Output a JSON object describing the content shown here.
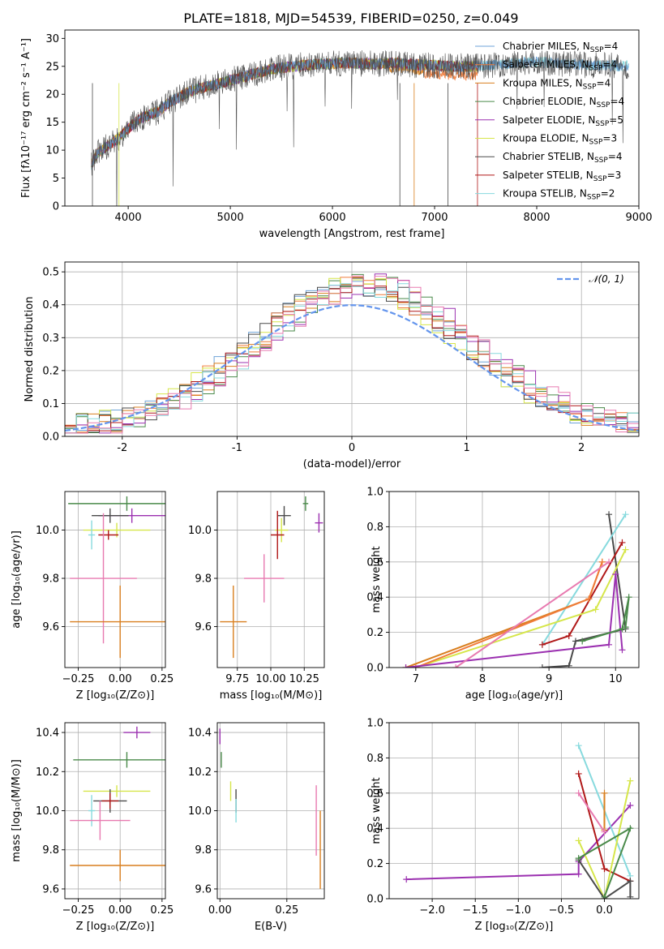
{
  "colors": {
    "c1": "#6fa3d8",
    "c2": "#f07c3a",
    "c3": "#d97f1f",
    "c4": "#4a8a4a",
    "c5": "#9b30b0",
    "c6": "#d6e64a",
    "c7": "#4a4a4a",
    "c8": "#b01818",
    "c9": "#87dade",
    "pink": "#e87ab0",
    "gauss": "#6495ed"
  },
  "title": "PLATE=1818, MJD=54539, FIBERID=0250, z=0.049",
  "chart_data": [
    {
      "id": "spectrum",
      "type": "line",
      "xlabel": "wavelength [Angstrom, rest frame]",
      "ylabel": "Flux [fλ10⁻¹⁷ erg cm⁻² s⁻¹ A⁻¹]",
      "xlim": [
        3380,
        9000
      ],
      "ylim": [
        0,
        31.5
      ],
      "xticks": [
        4000,
        5000,
        6000,
        7000,
        8000,
        9000
      ],
      "yticks": [
        0,
        5,
        10,
        15,
        20,
        25,
        30
      ],
      "legend_position": "top-right",
      "legend": [
        {
          "label": "Chabrier MILES, N",
          "sub": "SSP",
          "suffix": "=4",
          "color": "c1"
        },
        {
          "label": "Salpeter MILES, N",
          "sub": "SSP",
          "suffix": "=4",
          "color": "c2"
        },
        {
          "label": "Kroupa MILES, N",
          "sub": "SSP",
          "suffix": "=4",
          "color": "c3"
        },
        {
          "label": "Chabrier ELODIE, N",
          "sub": "SSP",
          "suffix": "=4",
          "color": "c4"
        },
        {
          "label": "Salpeter ELODIE, N",
          "sub": "SSP",
          "suffix": "=5",
          "color": "c5"
        },
        {
          "label": "Kroupa ELODIE, N",
          "sub": "SSP",
          "suffix": "=3",
          "color": "c6"
        },
        {
          "label": "Chabrier STELIB, N",
          "sub": "SSP",
          "suffix": "=4",
          "color": "c7"
        },
        {
          "label": "Salpeter STELIB, N",
          "sub": "SSP",
          "suffix": "=3",
          "color": "c8"
        },
        {
          "label": "Kroupa STELIB, N",
          "sub": "SSP",
          "suffix": "=2",
          "color": "c9"
        }
      ],
      "continuum": [
        [
          3640,
          7.5
        ],
        [
          3700,
          9.5
        ],
        [
          3900,
          12
        ],
        [
          4000,
          13.8
        ],
        [
          4100,
          15.5
        ],
        [
          4300,
          17
        ],
        [
          4400,
          18.5
        ],
        [
          4600,
          20.5
        ],
        [
          4800,
          21.5
        ],
        [
          5000,
          22.5
        ],
        [
          5200,
          23.5
        ],
        [
          5400,
          24.5
        ],
        [
          5600,
          25
        ],
        [
          5800,
          25.3
        ],
        [
          6000,
          25.5
        ],
        [
          6200,
          25.6
        ],
        [
          6400,
          25.4
        ],
        [
          6600,
          25.6
        ],
        [
          6800,
          25.3
        ],
        [
          7000,
          25.2
        ],
        [
          7200,
          25
        ],
        [
          7400,
          25
        ],
        [
          7600,
          25.3
        ],
        [
          7800,
          25.6
        ],
        [
          8000,
          25.8
        ],
        [
          8200,
          25.6
        ],
        [
          8400,
          25.3
        ],
        [
          8600,
          25.2
        ],
        [
          8800,
          25.1
        ],
        [
          8900,
          25
        ]
      ]
    },
    {
      "id": "residuals",
      "type": "histogram",
      "xlabel": "(data-model)/error",
      "ylabel": "Normed distribution",
      "xlim": [
        -2.5,
        2.5
      ],
      "ylim": [
        0,
        0.53
      ],
      "xticks": [
        -2,
        -1,
        0,
        1,
        2
      ],
      "yticks": [
        0.0,
        0.1,
        0.2,
        0.3,
        0.4,
        0.5
      ],
      "legend": "𝒩(0, 1)",
      "legend_position": "top-right",
      "bin_width": 0.1,
      "base": [
        0.03,
        0.035,
        0.04,
        0.045,
        0.05,
        0.06,
        0.07,
        0.08,
        0.09,
        0.1,
        0.12,
        0.13,
        0.15,
        0.17,
        0.19,
        0.21,
        0.23,
        0.25,
        0.27,
        0.29,
        0.31,
        0.33,
        0.35,
        0.37,
        0.39,
        0.41,
        0.42,
        0.43,
        0.44,
        0.45,
        0.44,
        0.43,
        0.42,
        0.41,
        0.39,
        0.37,
        0.35,
        0.33,
        0.31,
        0.29,
        0.27,
        0.25,
        0.23,
        0.21,
        0.19,
        0.17,
        0.15,
        0.13,
        0.11,
        0.09
      ],
      "gaussian": {
        "mean": 0,
        "sigma": 1
      }
    },
    {
      "id": "age_vs_Z",
      "type": "errorbar",
      "xlabel": "Z [log₁₀(Z/Z⊙)]",
      "ylabel": "age  [log₁₀(age/yr)]",
      "xlim": [
        -0.33,
        0.27
      ],
      "ylim": [
        9.43,
        10.16
      ],
      "xticks": [
        -0.25,
        0.0,
        0.25
      ],
      "xticklabels": [
        "−0.25",
        "0.00",
        "0.25"
      ],
      "yticks": [
        9.6,
        9.8,
        10.0
      ],
      "points": [
        {
          "x": 0.04,
          "y": 10.11,
          "xerr": 0.35,
          "yerr": 0.03,
          "color": "c4"
        },
        {
          "x": 0.07,
          "y": 10.06,
          "xerr": 0.2,
          "yerr": 0.03,
          "color": "c5"
        },
        {
          "x": -0.06,
          "y": 10.06,
          "xerr": 0.11,
          "yerr": 0.03,
          "color": "c7"
        },
        {
          "x": -0.02,
          "y": 10.0,
          "xerr": 0.2,
          "yerr": 0.03,
          "color": "c6"
        },
        {
          "x": -0.07,
          "y": 9.98,
          "xerr": 0.06,
          "yerr": 0.02,
          "color": "c8"
        },
        {
          "x": -0.17,
          "y": 9.98,
          "xerr": 0.02,
          "yerr": 0.06,
          "color": "c9"
        },
        {
          "x": -0.1,
          "y": 9.8,
          "xerr": 0.2,
          "yerr": 0.27,
          "color": "pink"
        },
        {
          "x": 0.0,
          "y": 9.62,
          "xerr": 0.3,
          "yerr": 0.15,
          "color": "c3"
        }
      ]
    },
    {
      "id": "age_vs_mass",
      "type": "errorbar",
      "xlabel": "mass [log₁₀(M/M⊙)]",
      "xlim": [
        9.6,
        10.4
      ],
      "ylim": [
        9.43,
        10.16
      ],
      "xticks": [
        9.75,
        10.0,
        10.25
      ],
      "xticklabels": [
        "9.75",
        "10.00",
        "10.25"
      ],
      "yticks": [
        9.6,
        9.8,
        10.0
      ],
      "points": [
        {
          "x": 10.26,
          "y": 10.11,
          "xerr": 0.02,
          "yerr": 0.03,
          "color": "c4"
        },
        {
          "x": 10.36,
          "y": 10.03,
          "xerr": 0.03,
          "yerr": 0.04,
          "color": "c5"
        },
        {
          "x": 10.1,
          "y": 10.06,
          "xerr": 0.05,
          "yerr": 0.04,
          "color": "c7"
        },
        {
          "x": 10.08,
          "y": 10.0,
          "xerr": 0.05,
          "yerr": 0.05,
          "color": "c6"
        },
        {
          "x": 10.05,
          "y": 9.98,
          "xerr": 0.05,
          "yerr": 0.1,
          "color": "c8"
        },
        {
          "x": 9.95,
          "y": 9.8,
          "xerr": 0.15,
          "yerr": 0.1,
          "color": "pink"
        },
        {
          "x": 9.72,
          "y": 9.62,
          "xerr": 0.1,
          "yerr": 0.15,
          "color": "c3"
        }
      ]
    },
    {
      "id": "weight_vs_age",
      "type": "line",
      "xlabel": "age  [log₁₀(age/yr)]",
      "ylabel": "mass weight",
      "xlim": [
        6.6,
        10.35
      ],
      "ylim": [
        0,
        1
      ],
      "xticks": [
        7,
        8,
        9,
        10
      ],
      "yticks": [
        0.0,
        0.2,
        0.4,
        0.6,
        0.8,
        1.0
      ],
      "series": [
        {
          "color": "c7",
          "points": [
            [
              8.9,
              0.0
            ],
            [
              9.3,
              0.01
            ],
            [
              9.4,
              0.15
            ],
            [
              10.15,
              0.22
            ],
            [
              9.9,
              0.87
            ]
          ]
        },
        {
          "color": "c9",
          "points": [
            [
              8.9,
              0.13
            ],
            [
              10.15,
              0.87
            ]
          ]
        },
        {
          "color": "c8",
          "points": [
            [
              8.9,
              0.13
            ],
            [
              9.3,
              0.18
            ],
            [
              10.1,
              0.71
            ]
          ]
        },
        {
          "color": "c6",
          "points": [
            [
              7.0,
              0.0
            ],
            [
              9.7,
              0.33
            ],
            [
              10.15,
              0.67
            ]
          ]
        },
        {
          "color": "c3",
          "points": [
            [
              6.85,
              0.0
            ],
            [
              9.6,
              0.39
            ],
            [
              9.8,
              0.6
            ]
          ]
        },
        {
          "color": "c2",
          "points": [
            [
              7.0,
              0.0
            ],
            [
              9.6,
              0.39
            ],
            [
              9.8,
              0.6
            ]
          ]
        },
        {
          "color": "c5",
          "points": [
            [
              6.85,
              0.0
            ],
            [
              9.9,
              0.13
            ],
            [
              10.0,
              0.53
            ],
            [
              10.1,
              0.1
            ]
          ]
        },
        {
          "color": "c4",
          "points": [
            [
              9.5,
              0.15
            ],
            [
              10.1,
              0.22
            ],
            [
              10.2,
              0.4
            ],
            [
              10.15,
              0.23
            ]
          ]
        },
        {
          "color": "pink",
          "points": [
            [
              7.6,
              0.0
            ],
            [
              9.9,
              0.6
            ]
          ]
        }
      ]
    },
    {
      "id": "mass_vs_Z",
      "type": "errorbar",
      "xlabel": "Z [log₁₀(Z/Z⊙)]",
      "ylabel": "mass [log₁₀(M/M⊙)]",
      "xlim": [
        -0.33,
        0.27
      ],
      "ylim": [
        9.55,
        10.45
      ],
      "xticks": [
        -0.25,
        0.0,
        0.25
      ],
      "xticklabels": [
        "−0.25",
        "0.00",
        "0.25"
      ],
      "yticks": [
        9.6,
        9.8,
        10.0,
        10.2,
        10.4
      ],
      "points": [
        {
          "x": 0.1,
          "y": 10.4,
          "xerr": 0.08,
          "yerr": 0.03,
          "color": "c5"
        },
        {
          "x": 0.04,
          "y": 10.26,
          "xerr": 0.32,
          "yerr": 0.04,
          "color": "c4"
        },
        {
          "x": -0.02,
          "y": 10.1,
          "xerr": 0.2,
          "yerr": 0.03,
          "color": "c6"
        },
        {
          "x": -0.06,
          "y": 10.05,
          "xerr": 0.1,
          "yerr": 0.06,
          "color": "c7"
        },
        {
          "x": -0.06,
          "y": 10.05,
          "xerr": 0.05,
          "yerr": 0.04,
          "color": "c8"
        },
        {
          "x": -0.17,
          "y": 10.0,
          "xerr": 0.02,
          "yerr": 0.08,
          "color": "c9"
        },
        {
          "x": -0.12,
          "y": 9.95,
          "xerr": 0.18,
          "yerr": 0.1,
          "color": "pink"
        },
        {
          "x": 0.0,
          "y": 9.72,
          "xerr": 0.3,
          "yerr": 0.08,
          "color": "c3"
        }
      ]
    },
    {
      "id": "mass_vs_EBV",
      "type": "errorbar",
      "xlabel": "E(B-V)",
      "xlim": [
        -0.01,
        0.39
      ],
      "ylim": [
        9.55,
        10.45
      ],
      "xticks": [
        0.0,
        0.25
      ],
      "xticklabels": [
        "0.00",
        "0.25"
      ],
      "yticks": [
        9.6,
        9.8,
        10.0,
        10.2,
        10.4
      ],
      "points": [
        {
          "x": 0.0,
          "y": 10.38,
          "xerr": 0,
          "yerr": 0.04,
          "color": "c5"
        },
        {
          "x": 0.005,
          "y": 10.26,
          "xerr": 0,
          "yerr": 0.04,
          "color": "c4"
        },
        {
          "x": 0.04,
          "y": 10.1,
          "xerr": 0,
          "yerr": 0.05,
          "color": "c6"
        },
        {
          "x": 0.06,
          "y": 10.05,
          "xerr": 0,
          "yerr": 0.06,
          "color": "c7"
        },
        {
          "x": 0.06,
          "y": 10.0,
          "xerr": 0,
          "yerr": 0.06,
          "color": "c9"
        },
        {
          "x": 0.36,
          "y": 9.95,
          "xerr": 0,
          "yerr": 0.18,
          "color": "pink"
        },
        {
          "x": 0.375,
          "y": 9.8,
          "xerr": 0,
          "yerr": 0.2,
          "color": "c3"
        }
      ]
    },
    {
      "id": "weight_vs_Z",
      "type": "line",
      "xlabel": "Z [log₁₀(Z/Z⊙)]",
      "ylabel": "mass weight",
      "xlim": [
        -2.5,
        0.4
      ],
      "ylim": [
        0,
        1
      ],
      "xticks": [
        -2.0,
        -1.5,
        -1.0,
        -0.5,
        0.0
      ],
      "xticklabels": [
        "−2.0",
        "−1.5",
        "−1.0",
        "−0.5",
        "0.0"
      ],
      "yticks": [
        0.0,
        0.2,
        0.4,
        0.6,
        0.8,
        1.0
      ],
      "series": [
        {
          "color": "c5",
          "points": [
            [
              -2.3,
              0.11
            ],
            [
              -0.3,
              0.14
            ],
            [
              -0.3,
              0.21
            ],
            [
              0.3,
              0.53
            ]
          ]
        },
        {
          "color": "c9",
          "points": [
            [
              -0.3,
              0.87
            ],
            [
              0.3,
              0.13
            ]
          ]
        },
        {
          "color": "c8",
          "points": [
            [
              -0.3,
              0.71
            ],
            [
              0.0,
              0.17
            ],
            [
              0.3,
              0.1
            ]
          ]
        },
        {
          "color": "c6",
          "points": [
            [
              -0.3,
              0.33
            ],
            [
              0.0,
              0.0
            ],
            [
              0.3,
              0.67
            ]
          ]
        },
        {
          "color": "c3",
          "points": [
            [
              0.0,
              0.6
            ],
            [
              0.0,
              0.39
            ]
          ]
        },
        {
          "color": "c7",
          "points": [
            [
              -0.3,
              0.22
            ],
            [
              0.0,
              0.0
            ],
            [
              0.3,
              0.1
            ],
            [
              0.3,
              0.01
            ]
          ]
        },
        {
          "color": "c4",
          "points": [
            [
              -0.3,
              0.23
            ],
            [
              0.3,
              0.4
            ],
            [
              0.0,
              0.01
            ]
          ]
        },
        {
          "color": "pink",
          "points": [
            [
              -0.3,
              0.6
            ],
            [
              0.0,
              0.38
            ]
          ]
        }
      ]
    }
  ]
}
